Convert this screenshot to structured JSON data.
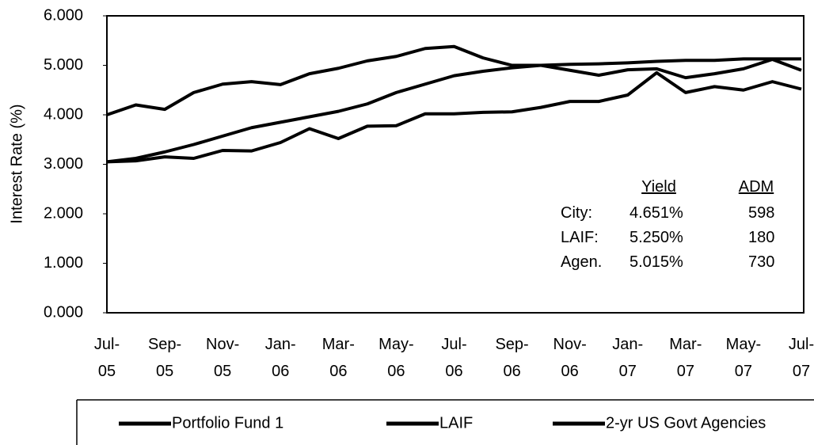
{
  "chart_data": {
    "type": "line",
    "y_label": "Interest Rate (%)",
    "categories": [
      "Jul-\n05",
      null,
      "Sep-\n05",
      null,
      "Nov-\n05",
      null,
      "Jan-\n06",
      null,
      "Mar-\n06",
      null,
      "May-\n06",
      null,
      "Jul-\n06",
      null,
      "Sep-\n06",
      null,
      "Nov-\n06",
      null,
      "Jan-\n07",
      null,
      "Mar-\n07",
      null,
      "May-\n07",
      null,
      "Jul-\n07"
    ],
    "ylim": [
      0,
      6
    ],
    "yticks": [
      {
        "value": 0,
        "label": "0.000"
      },
      {
        "value": 1,
        "label": "1.000"
      },
      {
        "value": 2,
        "label": "2.000"
      },
      {
        "value": 3,
        "label": "3.000"
      },
      {
        "value": 4,
        "label": "4.000"
      },
      {
        "value": 5,
        "label": "5.000"
      },
      {
        "value": 6,
        "label": "6.000"
      }
    ],
    "series": [
      {
        "name": "Portfolio Fund 1",
        "color": "#000000",
        "values": [
          3.05,
          3.07,
          3.15,
          3.12,
          3.28,
          3.27,
          3.44,
          3.72,
          3.52,
          3.77,
          3.78,
          4.02,
          4.02,
          4.05,
          4.06,
          4.15,
          4.27,
          4.27,
          4.4,
          4.85,
          4.45,
          4.57,
          4.5,
          4.67,
          4.52
        ]
      },
      {
        "name": "LAIF",
        "color": "#000000",
        "values": [
          3.05,
          3.12,
          3.25,
          3.4,
          3.57,
          3.74,
          3.85,
          3.96,
          4.07,
          4.22,
          4.45,
          4.62,
          4.79,
          4.88,
          4.95,
          5.0,
          5.02,
          5.03,
          5.05,
          5.08,
          5.1,
          5.1,
          5.13,
          5.13,
          5.13
        ]
      },
      {
        "name": "2-yr US Govt Agencies",
        "color": "#000000",
        "values": [
          4.0,
          4.2,
          4.11,
          4.45,
          4.62,
          4.67,
          4.61,
          4.83,
          4.94,
          5.09,
          5.18,
          5.34,
          5.38,
          5.15,
          5.0,
          5.0,
          4.9,
          4.8,
          4.91,
          4.93,
          4.75,
          4.83,
          4.93,
          5.12,
          4.9
        ]
      }
    ],
    "annotation_table": {
      "headers": [
        "Yield",
        "ADM"
      ],
      "rows": [
        [
          "City:",
          "4.651%",
          "598"
        ],
        [
          "LAIF:",
          "5.250%",
          "180"
        ],
        [
          "Agen.",
          "5.015%",
          "730"
        ]
      ]
    }
  }
}
